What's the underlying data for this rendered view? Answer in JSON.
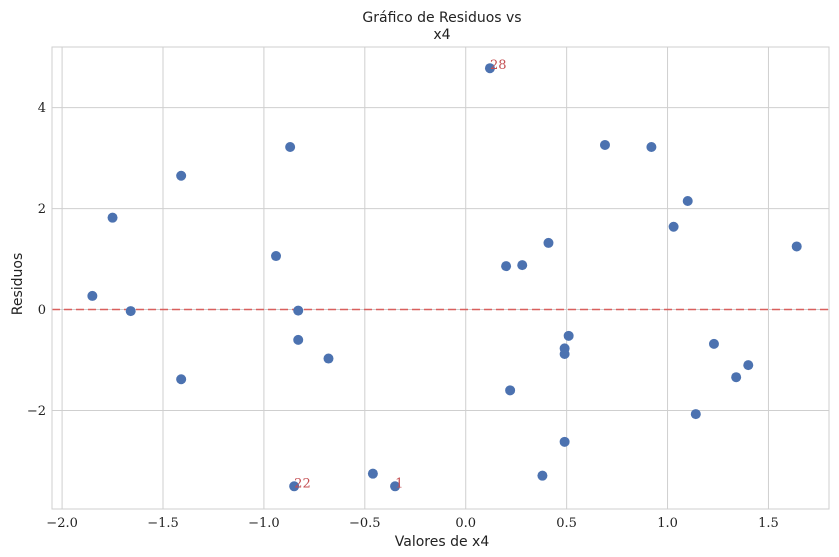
{
  "chart_data": {
    "type": "scatter",
    "title_line1": "Gráfico de Residuos vs",
    "title_line2": "x4",
    "xlabel": "Valores de x4",
    "ylabel": "Residuos",
    "xlim": [
      -2.05,
      1.8
    ],
    "ylim": [
      -3.95,
      5.2
    ],
    "xticks": [
      -2.0,
      -1.5,
      -1.0,
      -0.5,
      0.0,
      0.5,
      1.0,
      1.5
    ],
    "xtick_labels": [
      "−2.0",
      "−1.5",
      "−1.0",
      "−0.5",
      "0.0",
      "0.5",
      "1.0",
      "1.5"
    ],
    "yticks": [
      -2,
      0,
      2,
      4
    ],
    "ytick_labels": [
      "−2",
      "0",
      "2",
      "4"
    ],
    "grid": true,
    "reference_line": {
      "y": 0,
      "color": "#d9605e",
      "style": "dashed"
    },
    "point_color": "#4c72b0",
    "annotation_color": "#c44e52",
    "points": [
      {
        "x": -1.85,
        "y": 0.27
      },
      {
        "x": -1.75,
        "y": 1.82
      },
      {
        "x": -1.66,
        "y": -0.03
      },
      {
        "x": -1.41,
        "y": 2.65
      },
      {
        "x": -1.41,
        "y": -1.38
      },
      {
        "x": -0.94,
        "y": 1.06
      },
      {
        "x": -0.87,
        "y": 3.22
      },
      {
        "x": -0.85,
        "y": -3.5
      },
      {
        "x": -0.83,
        "y": -0.02
      },
      {
        "x": -0.83,
        "y": -0.6
      },
      {
        "x": -0.68,
        "y": -0.97
      },
      {
        "x": -0.46,
        "y": -3.25
      },
      {
        "x": -0.35,
        "y": -3.5
      },
      {
        "x": 0.12,
        "y": 4.78
      },
      {
        "x": 0.2,
        "y": 0.86
      },
      {
        "x": 0.22,
        "y": -1.6
      },
      {
        "x": 0.28,
        "y": 0.88
      },
      {
        "x": 0.38,
        "y": -3.29
      },
      {
        "x": 0.41,
        "y": 1.32
      },
      {
        "x": 0.49,
        "y": -0.77
      },
      {
        "x": 0.49,
        "y": -0.88
      },
      {
        "x": 0.49,
        "y": -2.62
      },
      {
        "x": 0.51,
        "y": -0.52
      },
      {
        "x": 0.69,
        "y": 3.26
      },
      {
        "x": 0.92,
        "y": 3.22
      },
      {
        "x": 1.03,
        "y": 1.64
      },
      {
        "x": 1.1,
        "y": 2.15
      },
      {
        "x": 1.14,
        "y": -2.07
      },
      {
        "x": 1.23,
        "y": -0.68
      },
      {
        "x": 1.34,
        "y": -1.34
      },
      {
        "x": 1.4,
        "y": -1.1
      },
      {
        "x": 1.64,
        "y": 1.25
      }
    ],
    "annotations": [
      {
        "text": "28",
        "x": 0.12,
        "y": 4.78
      },
      {
        "text": "22",
        "x": -0.85,
        "y": -3.5
      },
      {
        "text": "1",
        "x": -0.35,
        "y": -3.5
      }
    ]
  }
}
